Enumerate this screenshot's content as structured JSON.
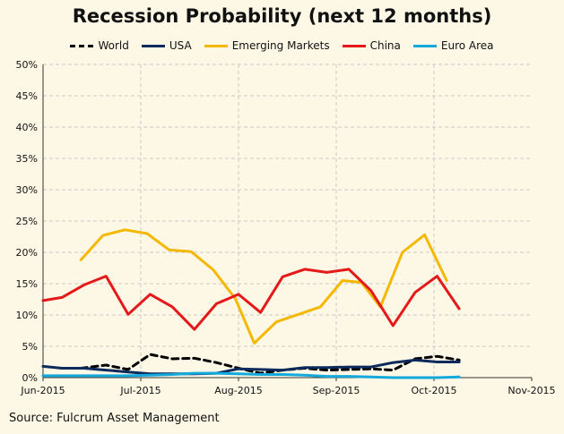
{
  "source": "Source: Fulcrum Asset Management",
  "colors": {
    "background": "#fdf8e6",
    "World": "#000000",
    "USA": "#0c2a5c",
    "Emerging Markets": "#f5b800",
    "China": "#e41a1a",
    "Euro Area": "#14a9dc"
  },
  "chart_data": {
    "type": "line",
    "title": "Recession Probability (next 12 months)",
    "xlabel": "",
    "ylabel": "",
    "x_ticks": [
      "Jun-2015",
      "Jul-2015",
      "Aug-2015",
      "Sep-2015",
      "Oct-2015",
      "Nov-2015"
    ],
    "y_ticks": [
      "0%",
      "5%",
      "10%",
      "15%",
      "20%",
      "25%",
      "30%",
      "35%",
      "40%",
      "45%",
      "50%"
    ],
    "ylim": [
      0,
      50
    ],
    "xlim": [
      0,
      155
    ],
    "grid": true,
    "legend": "top",
    "series": [
      {
        "name": "World",
        "style": "dashed",
        "x": [
          12,
          20,
          27,
          34,
          41,
          48,
          55,
          62,
          69,
          76,
          83,
          90,
          97,
          104,
          111,
          118,
          125,
          132
        ],
        "values": [
          1.5,
          2.0,
          1.3,
          3.7,
          3.0,
          3.1,
          2.4,
          1.5,
          0.7,
          1.2,
          1.5,
          1.2,
          1.3,
          1.4,
          1.2,
          3.0,
          3.4,
          2.8
        ]
      },
      {
        "name": "USA",
        "style": "solid",
        "x": [
          0,
          6,
          13,
          20,
          27,
          34,
          41,
          48,
          55,
          62,
          69,
          76,
          83,
          90,
          97,
          104,
          111,
          118,
          125,
          132
        ],
        "values": [
          1.8,
          1.5,
          1.5,
          1.2,
          0.9,
          0.6,
          0.6,
          0.6,
          0.7,
          1.4,
          1.3,
          1.2,
          1.6,
          1.6,
          1.7,
          1.7,
          2.4,
          2.8,
          2.5,
          2.5
        ]
      },
      {
        "name": "Emerging Markets",
        "style": "solid",
        "x": [
          12,
          19,
          26,
          33,
          40,
          47,
          54,
          61,
          67,
          74,
          81,
          88,
          95,
          101,
          107,
          114,
          121
        ],
        "values": [
          18.8,
          22.7,
          23.6,
          23.0,
          20.4,
          20.1,
          17.2,
          12.6,
          5.5,
          8.9,
          10.1,
          11.3,
          15.5,
          15.2,
          11.3,
          20.0,
          22.8
        ]
      },
      {
        "name": "Emerging Markets (tail)",
        "style": "solid",
        "x": [
          121,
          128
        ],
        "values": [
          22.8,
          15.5
        ]
      },
      {
        "name": "China",
        "style": "solid",
        "x": [
          0,
          6,
          13,
          20,
          27,
          34,
          41,
          48,
          55,
          62,
          69,
          76,
          83,
          90,
          97,
          104,
          111,
          118,
          125,
          132
        ],
        "values": [
          12.3,
          12.8,
          14.8,
          16.2,
          10.1,
          13.3,
          11.3,
          7.7,
          11.8,
          13.3,
          10.4,
          16.1,
          17.3,
          16.8,
          17.3,
          13.9,
          8.3,
          13.6,
          16.2,
          11.0
        ]
      },
      {
        "name": "Euro Area",
        "style": "solid",
        "x": [
          0,
          6,
          13,
          20,
          27,
          34,
          41,
          48,
          55,
          62,
          69,
          76,
          83,
          90,
          97,
          104,
          111,
          118,
          125,
          132
        ],
        "values": [
          0.3,
          0.3,
          0.3,
          0.3,
          0.3,
          0.4,
          0.5,
          0.7,
          0.7,
          0.6,
          0.5,
          0.5,
          0.4,
          0.2,
          0.2,
          0.1,
          0.0,
          0.0,
          0.0,
          0.1
        ]
      }
    ]
  },
  "legend_items": [
    "World",
    "USA",
    "Emerging Markets",
    "China",
    "Euro Area"
  ]
}
